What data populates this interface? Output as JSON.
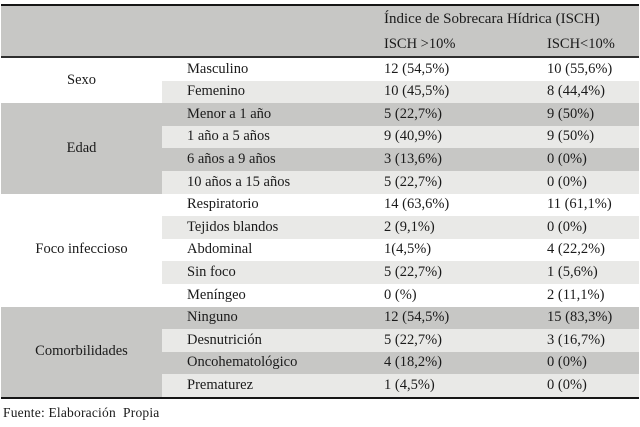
{
  "table": {
    "title": "Índice de Sobrecara Hídrica (ISCH)",
    "col_headers": [
      "ISCH >10%",
      "ISCH<10%"
    ],
    "groups": [
      {
        "label": "Sexo",
        "rows": [
          {
            "category": "Masculino",
            "gt10": "12 (54,5%)",
            "lt10": "10 (55,6%)"
          },
          {
            "category": "Femenino",
            "gt10": "10 (45,5%)",
            "lt10": "8 (44,4%)"
          }
        ]
      },
      {
        "label": "Edad",
        "rows": [
          {
            "category": "Menor a 1 año",
            "gt10": "5 (22,7%)",
            "lt10": "9 (50%)"
          },
          {
            "category": "1 año a 5 años",
            "gt10": "9 (40,9%)",
            "lt10": "9 (50%)"
          },
          {
            "category": "6 años a 9 años",
            "gt10": "3 (13,6%)",
            "lt10": "0 (0%)"
          },
          {
            "category": "10 años a 15 años",
            "gt10": "5 (22,7%)",
            "lt10": "0 (0%)"
          }
        ]
      },
      {
        "label": "Foco infeccioso",
        "rows": [
          {
            "category": "Respiratorio",
            "gt10": "14 (63,6%)",
            "lt10": "11 (61,1%)"
          },
          {
            "category": "Tejidos blandos",
            "gt10": "2 (9,1%)",
            "lt10": "0 (0%)"
          },
          {
            "category": "Abdominal",
            "gt10": "1(4,5%)",
            "lt10": "4 (22,2%)"
          },
          {
            "category": "Sin foco",
            "gt10": "5 (22,7%)",
            "lt10": "1 (5,6%)"
          },
          {
            "category": "Meníngeo",
            "gt10": "0 (%)",
            "lt10": "2 (11,1%)"
          }
        ]
      },
      {
        "label": "Comorbilidades",
        "rows": [
          {
            "category": "Ninguno",
            "gt10": "12 (54,5%)",
            "lt10": "15 (83,3%)"
          },
          {
            "category": "Desnutrición",
            "gt10": "5 (22,7%)",
            "lt10": "3 (16,7%)"
          },
          {
            "category": "Oncohematológico",
            "gt10": "4 (18,2%)",
            "lt10": "0 (0%)"
          },
          {
            "category": "Prematurez",
            "gt10": "1 (4,5%)",
            "lt10": "0 (0%)"
          }
        ]
      }
    ]
  },
  "footer": {
    "text": "Fuente: Elaboración  Propia"
  },
  "colors": {
    "header_gray": "#c7c7c5",
    "row_medium_gray": "#c7c7c5",
    "row_light_gray": "#e9e9e7",
    "border_dark": "#161616",
    "text": "#1a1a1a"
  }
}
